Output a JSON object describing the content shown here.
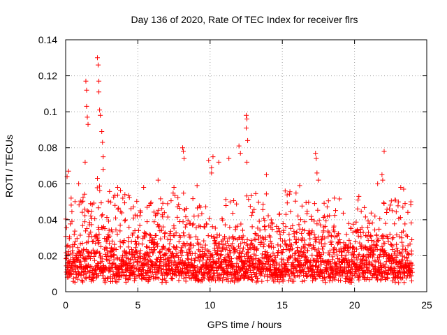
{
  "chart_data": {
    "type": "scatter",
    "title": "Day 136 of 2020, Rate Of TEC Index for receiver flrs",
    "xlabel": "GPS time / hours",
    "ylabel": "ROTI / TECUs",
    "xlim": [
      0,
      25
    ],
    "ylim": [
      0,
      0.14
    ],
    "xticks": [
      0,
      5,
      10,
      15,
      20,
      25
    ],
    "xtick_labels": [
      "0",
      "5",
      "10",
      "15",
      "20",
      "25"
    ],
    "yticks": [
      0,
      0.02,
      0.04,
      0.06,
      0.08,
      0.1,
      0.12,
      0.14
    ],
    "ytick_labels": [
      "0",
      "0.02",
      "0.04",
      "0.06",
      "0.08",
      "0.1",
      "0.12",
      "0.14"
    ],
    "grid": true,
    "marker": "+",
    "marker_color": "#ff0000",
    "x_extent_hours": [
      0,
      24
    ],
    "typical_range": [
      0.005,
      0.04
    ],
    "series": [
      {
        "name": "ROTI",
        "notable_points": [
          {
            "x": 0.2,
            "y": 0.067
          },
          {
            "x": 0.1,
            "y": 0.064
          },
          {
            "x": 0.9,
            "y": 0.06
          },
          {
            "x": 1.35,
            "y": 0.072
          },
          {
            "x": 1.4,
            "y": 0.117
          },
          {
            "x": 1.45,
            "y": 0.112
          },
          {
            "x": 1.45,
            "y": 0.103
          },
          {
            "x": 1.5,
            "y": 0.097
          },
          {
            "x": 1.55,
            "y": 0.093
          },
          {
            "x": 2.2,
            "y": 0.13
          },
          {
            "x": 2.25,
            "y": 0.126
          },
          {
            "x": 2.3,
            "y": 0.117
          },
          {
            "x": 2.3,
            "y": 0.111
          },
          {
            "x": 2.35,
            "y": 0.101
          },
          {
            "x": 2.4,
            "y": 0.098
          },
          {
            "x": 2.5,
            "y": 0.089
          },
          {
            "x": 2.55,
            "y": 0.083
          },
          {
            "x": 2.6,
            "y": 0.075
          },
          {
            "x": 2.6,
            "y": 0.068
          },
          {
            "x": 2.2,
            "y": 0.063
          },
          {
            "x": 3.6,
            "y": 0.058
          },
          {
            "x": 4.1,
            "y": 0.054
          },
          {
            "x": 5.4,
            "y": 0.058
          },
          {
            "x": 6.4,
            "y": 0.062
          },
          {
            "x": 8.1,
            "y": 0.08
          },
          {
            "x": 8.15,
            "y": 0.078
          },
          {
            "x": 8.2,
            "y": 0.074
          },
          {
            "x": 7.5,
            "y": 0.058
          },
          {
            "x": 9.1,
            "y": 0.059
          },
          {
            "x": 9.9,
            "y": 0.073
          },
          {
            "x": 10.2,
            "y": 0.075
          },
          {
            "x": 10.1,
            "y": 0.069
          },
          {
            "x": 10.6,
            "y": 0.072
          },
          {
            "x": 10.1,
            "y": 0.066
          },
          {
            "x": 11.3,
            "y": 0.074
          },
          {
            "x": 12.0,
            "y": 0.081
          },
          {
            "x": 12.1,
            "y": 0.077
          },
          {
            "x": 12.5,
            "y": 0.098
          },
          {
            "x": 12.55,
            "y": 0.096
          },
          {
            "x": 12.5,
            "y": 0.091
          },
          {
            "x": 12.6,
            "y": 0.084
          },
          {
            "x": 12.55,
            "y": 0.072
          },
          {
            "x": 13.9,
            "y": 0.065
          },
          {
            "x": 15.2,
            "y": 0.056
          },
          {
            "x": 16.2,
            "y": 0.059
          },
          {
            "x": 17.3,
            "y": 0.077
          },
          {
            "x": 17.35,
            "y": 0.074
          },
          {
            "x": 17.4,
            "y": 0.066
          },
          {
            "x": 17.5,
            "y": 0.062
          },
          {
            "x": 18.6,
            "y": 0.052
          },
          {
            "x": 20.3,
            "y": 0.053
          },
          {
            "x": 21.6,
            "y": 0.06
          },
          {
            "x": 21.9,
            "y": 0.065
          },
          {
            "x": 22.05,
            "y": 0.078
          },
          {
            "x": 21.95,
            "y": 0.062
          },
          {
            "x": 22.8,
            "y": 0.051
          },
          {
            "x": 23.2,
            "y": 0.058
          },
          {
            "x": 23.4,
            "y": 0.057
          },
          {
            "x": 23.5,
            "y": 0.049
          },
          {
            "x": 23.9,
            "y": 0.05
          }
        ],
        "band_max_by_hour": [
          0.052,
          0.06,
          0.063,
          0.058,
          0.054,
          0.05,
          0.052,
          0.055,
          0.055,
          0.05,
          0.047,
          0.056,
          0.054,
          0.055,
          0.05,
          0.056,
          0.05,
          0.05,
          0.052,
          0.046,
          0.052,
          0.05,
          0.052,
          0.05
        ],
        "band_typical_by_hour": [
          0.026,
          0.033,
          0.033,
          0.026,
          0.022,
          0.022,
          0.028,
          0.028,
          0.024,
          0.024,
          0.023,
          0.024,
          0.025,
          0.024,
          0.024,
          0.026,
          0.025,
          0.027,
          0.025,
          0.022,
          0.025,
          0.028,
          0.025,
          0.024
        ]
      }
    ]
  }
}
